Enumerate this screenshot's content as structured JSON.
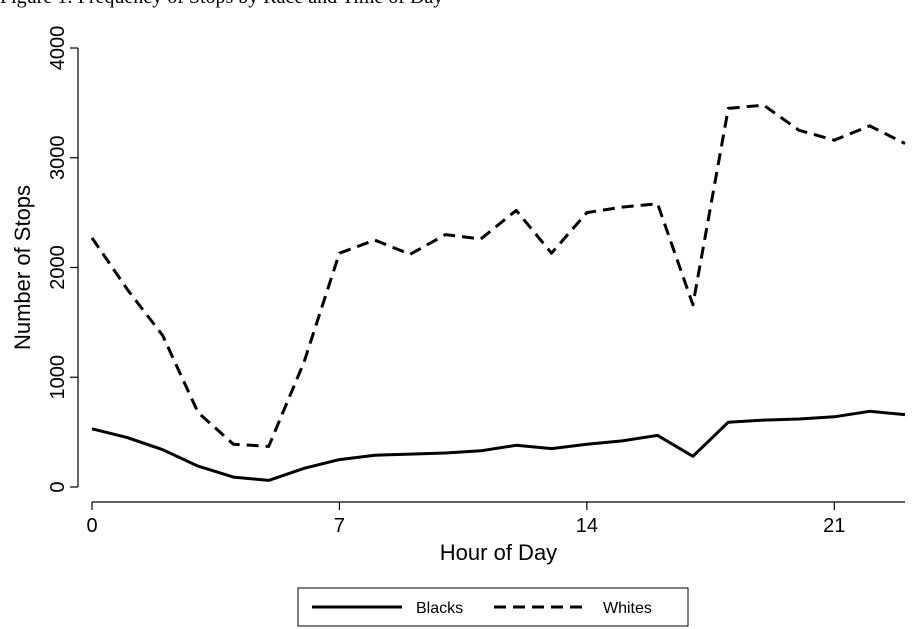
{
  "caption": "Figure 1: Frequency of Stops by Race and Time of Day",
  "chart_data": {
    "type": "line",
    "xlabel": "Hour of Day",
    "ylabel": "Number of Stops",
    "x": [
      0,
      1,
      2,
      3,
      4,
      5,
      6,
      7,
      8,
      9,
      10,
      11,
      12,
      13,
      14,
      15,
      16,
      17,
      18,
      19,
      20,
      21,
      22,
      23
    ],
    "xlim": [
      0,
      23
    ],
    "xticks": [
      0,
      7,
      14,
      21
    ],
    "ylim": [
      0,
      4000
    ],
    "yticks": [
      0,
      1000,
      2000,
      3000,
      4000
    ],
    "grid": false,
    "legend_position": "bottom",
    "series": [
      {
        "name": "Blacks",
        "style": "solid",
        "values": [
          530,
          450,
          340,
          190,
          90,
          60,
          170,
          250,
          290,
          300,
          310,
          330,
          380,
          350,
          390,
          420,
          470,
          280,
          590,
          610,
          620,
          640,
          690,
          660
        ]
      },
      {
        "name": "Whites",
        "style": "dashed",
        "values": [
          2270,
          1800,
          1380,
          680,
          390,
          370,
          1140,
          2130,
          2250,
          2120,
          2300,
          2260,
          2520,
          2130,
          2500,
          2550,
          2580,
          1660,
          3450,
          3480,
          3250,
          3160,
          3290,
          3130
        ]
      }
    ]
  }
}
